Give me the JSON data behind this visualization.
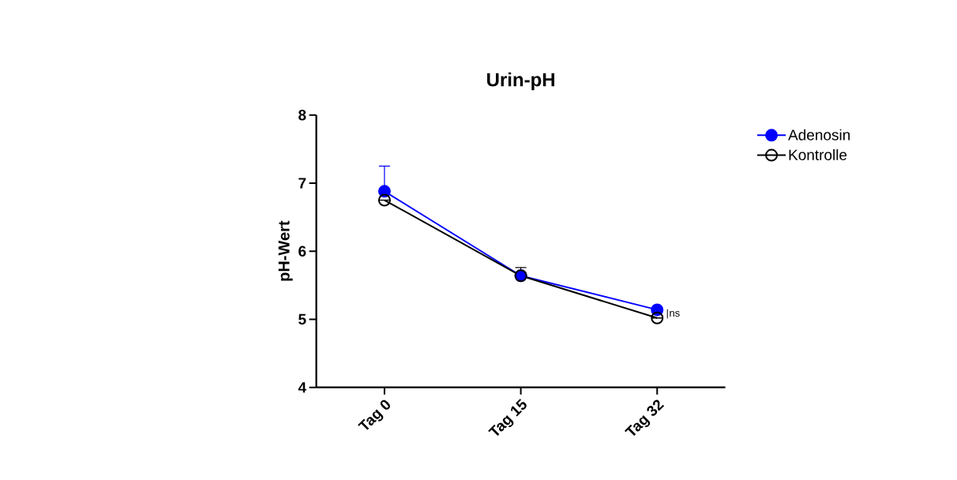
{
  "chart_data": {
    "type": "line",
    "title": "Urin-pH",
    "ylabel": "pH-Wert",
    "categories": [
      "Tag 0",
      "Tag 15",
      "Tag 32"
    ],
    "series": [
      {
        "name": "Adenosin",
        "color": "#0000ff",
        "values": [
          6.88,
          5.64,
          5.14
        ],
        "errors": [
          [
            6.88,
            7.25
          ],
          null,
          null
        ]
      },
      {
        "name": "Kontrolle",
        "color": "#000000",
        "values": [
          6.75,
          5.64,
          5.02
        ],
        "errors": [
          null,
          [
            5.64,
            5.76
          ],
          null
        ]
      }
    ],
    "ylim": [
      4,
      8
    ],
    "yticks": [
      4,
      5,
      6,
      7,
      8
    ],
    "grid": false,
    "legend": "top right",
    "marker": "circle",
    "line_style": "solid",
    "annotations": [
      {
        "text": "ns",
        "x": "Tag 32",
        "y": 5.08
      }
    ]
  }
}
